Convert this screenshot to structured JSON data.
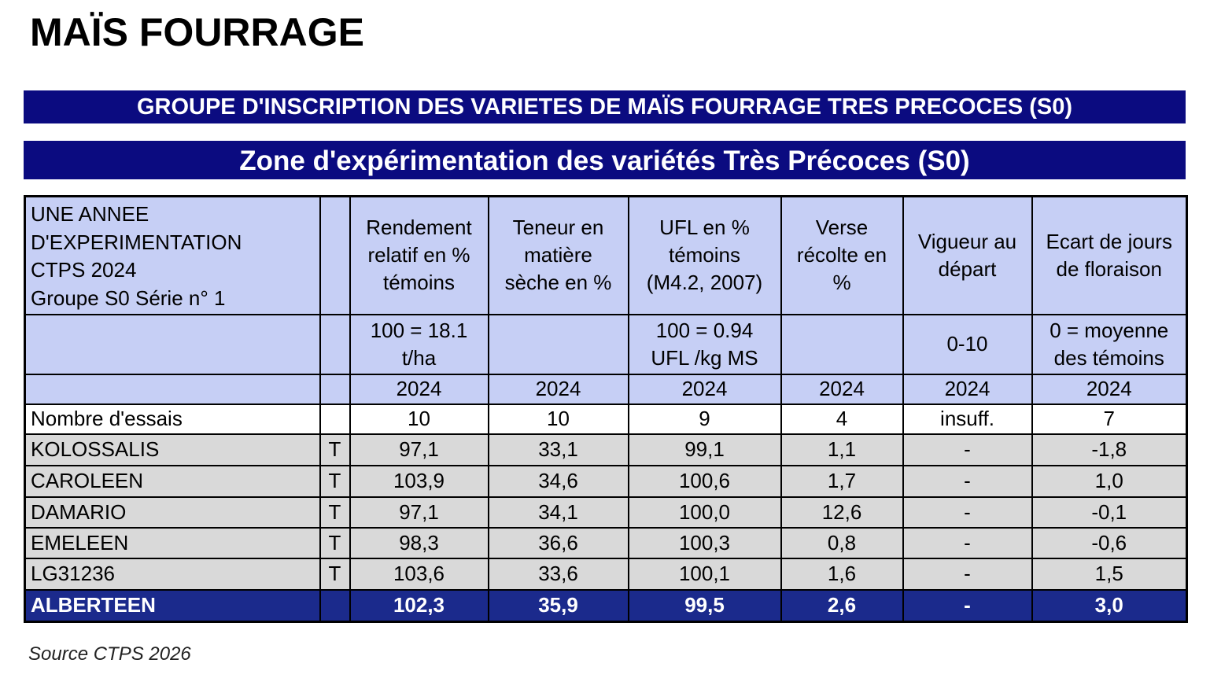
{
  "header": {
    "title": "MAÏS FOURRAGE"
  },
  "banners": {
    "group": "GROUPE D'INSCRIPTION DES VARIETES DE MAÏS FOURRAGE TRES PRECOCES (S0)",
    "zone": "Zone d'expérimentation des variétés Très Précoces (S0)"
  },
  "table": {
    "description": [
      "UNE ANNEE",
      "D'EXPERIMENTATION",
      "CTPS 2024",
      "Groupe S0 Série n° 1"
    ],
    "columns": [
      {
        "label": [
          "Rendement",
          "relatif en %",
          "témoins"
        ],
        "reference": [
          "100 = 18.1",
          "t/ha"
        ],
        "year": "2024"
      },
      {
        "label": [
          "Teneur en",
          "matière",
          "sèche en %"
        ],
        "reference": null,
        "year": "2024"
      },
      {
        "label": [
          "UFL en %",
          "témoins",
          "(M4.2, 2007)"
        ],
        "reference": [
          "100 = 0.94",
          "UFL /kg MS"
        ],
        "year": "2024"
      },
      {
        "label": [
          "Verse",
          "récolte en",
          "%"
        ],
        "reference": null,
        "year": "2024"
      },
      {
        "label": [
          "Vigueur au",
          "départ"
        ],
        "reference": [
          "0-10"
        ],
        "year": "2024"
      },
      {
        "label": [
          "Ecart de jours",
          "de floraison"
        ],
        "reference": [
          "0 = moyenne",
          "des témoins"
        ],
        "year": "2024"
      }
    ],
    "rows": [
      {
        "name": "Nombre d'essais",
        "mark": null,
        "values": [
          "10",
          "10",
          "9",
          "4",
          "insuff.",
          "7"
        ]
      },
      {
        "name": "KOLOSSALIS",
        "mark": "T",
        "values": [
          "97,1",
          "33,1",
          "99,1",
          "1,1",
          "-",
          "-1,8"
        ]
      },
      {
        "name": "CAROLEEN",
        "mark": "T",
        "values": [
          "103,9",
          "34,6",
          "100,6",
          "1,7",
          "-",
          "1,0"
        ]
      },
      {
        "name": "DAMARIO",
        "mark": "T",
        "values": [
          "97,1",
          "34,1",
          "100,0",
          "12,6",
          "-",
          "-0,1"
        ]
      },
      {
        "name": "EMELEEN",
        "mark": "T",
        "values": [
          "98,3",
          "36,6",
          "100,3",
          "0,8",
          "-",
          "-0,6"
        ]
      },
      {
        "name": "LG31236",
        "mark": "T",
        "values": [
          "103,6",
          "33,6",
          "100,1",
          "1,6",
          "-",
          "1,5"
        ]
      },
      {
        "name": "ALBERTEEN",
        "mark": null,
        "values": [
          "102,3",
          "35,9",
          "99,5",
          "2,6",
          "-",
          "3,0"
        ]
      }
    ]
  },
  "source": "Source CTPS 2026"
}
